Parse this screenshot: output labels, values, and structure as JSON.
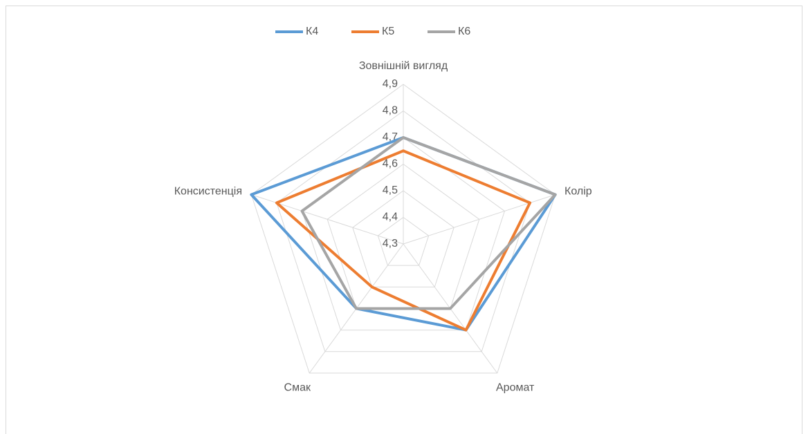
{
  "chart_data": {
    "type": "radar",
    "categories": [
      "Зовнішній вигляд",
      "Колір",
      "Аромат",
      "Смак",
      "Консистенція"
    ],
    "series": [
      {
        "name": "К4",
        "color": "#5b9bd5",
        "values": [
          4.7,
          4.9,
          4.7,
          4.6,
          4.9
        ]
      },
      {
        "name": "К5",
        "color": "#ed7d31",
        "values": [
          4.65,
          4.8,
          4.7,
          4.5,
          4.8
        ]
      },
      {
        "name": "К6",
        "color": "#a5a5a5",
        "values": [
          4.7,
          4.9,
          4.6,
          4.6,
          4.7
        ]
      }
    ],
    "ylim": [
      4.3,
      4.9
    ],
    "yticks": [
      {
        "value": 4.3,
        "label": "4,3"
      },
      {
        "value": 4.4,
        "label": "4,4"
      },
      {
        "value": 4.5,
        "label": "4,5"
      },
      {
        "value": 4.6,
        "label": "4,6"
      },
      {
        "value": 4.7,
        "label": "4,7"
      },
      {
        "value": 4.8,
        "label": "4,8"
      },
      {
        "value": 4.9,
        "label": "4,9"
      }
    ],
    "grid": true,
    "legend": "top"
  }
}
